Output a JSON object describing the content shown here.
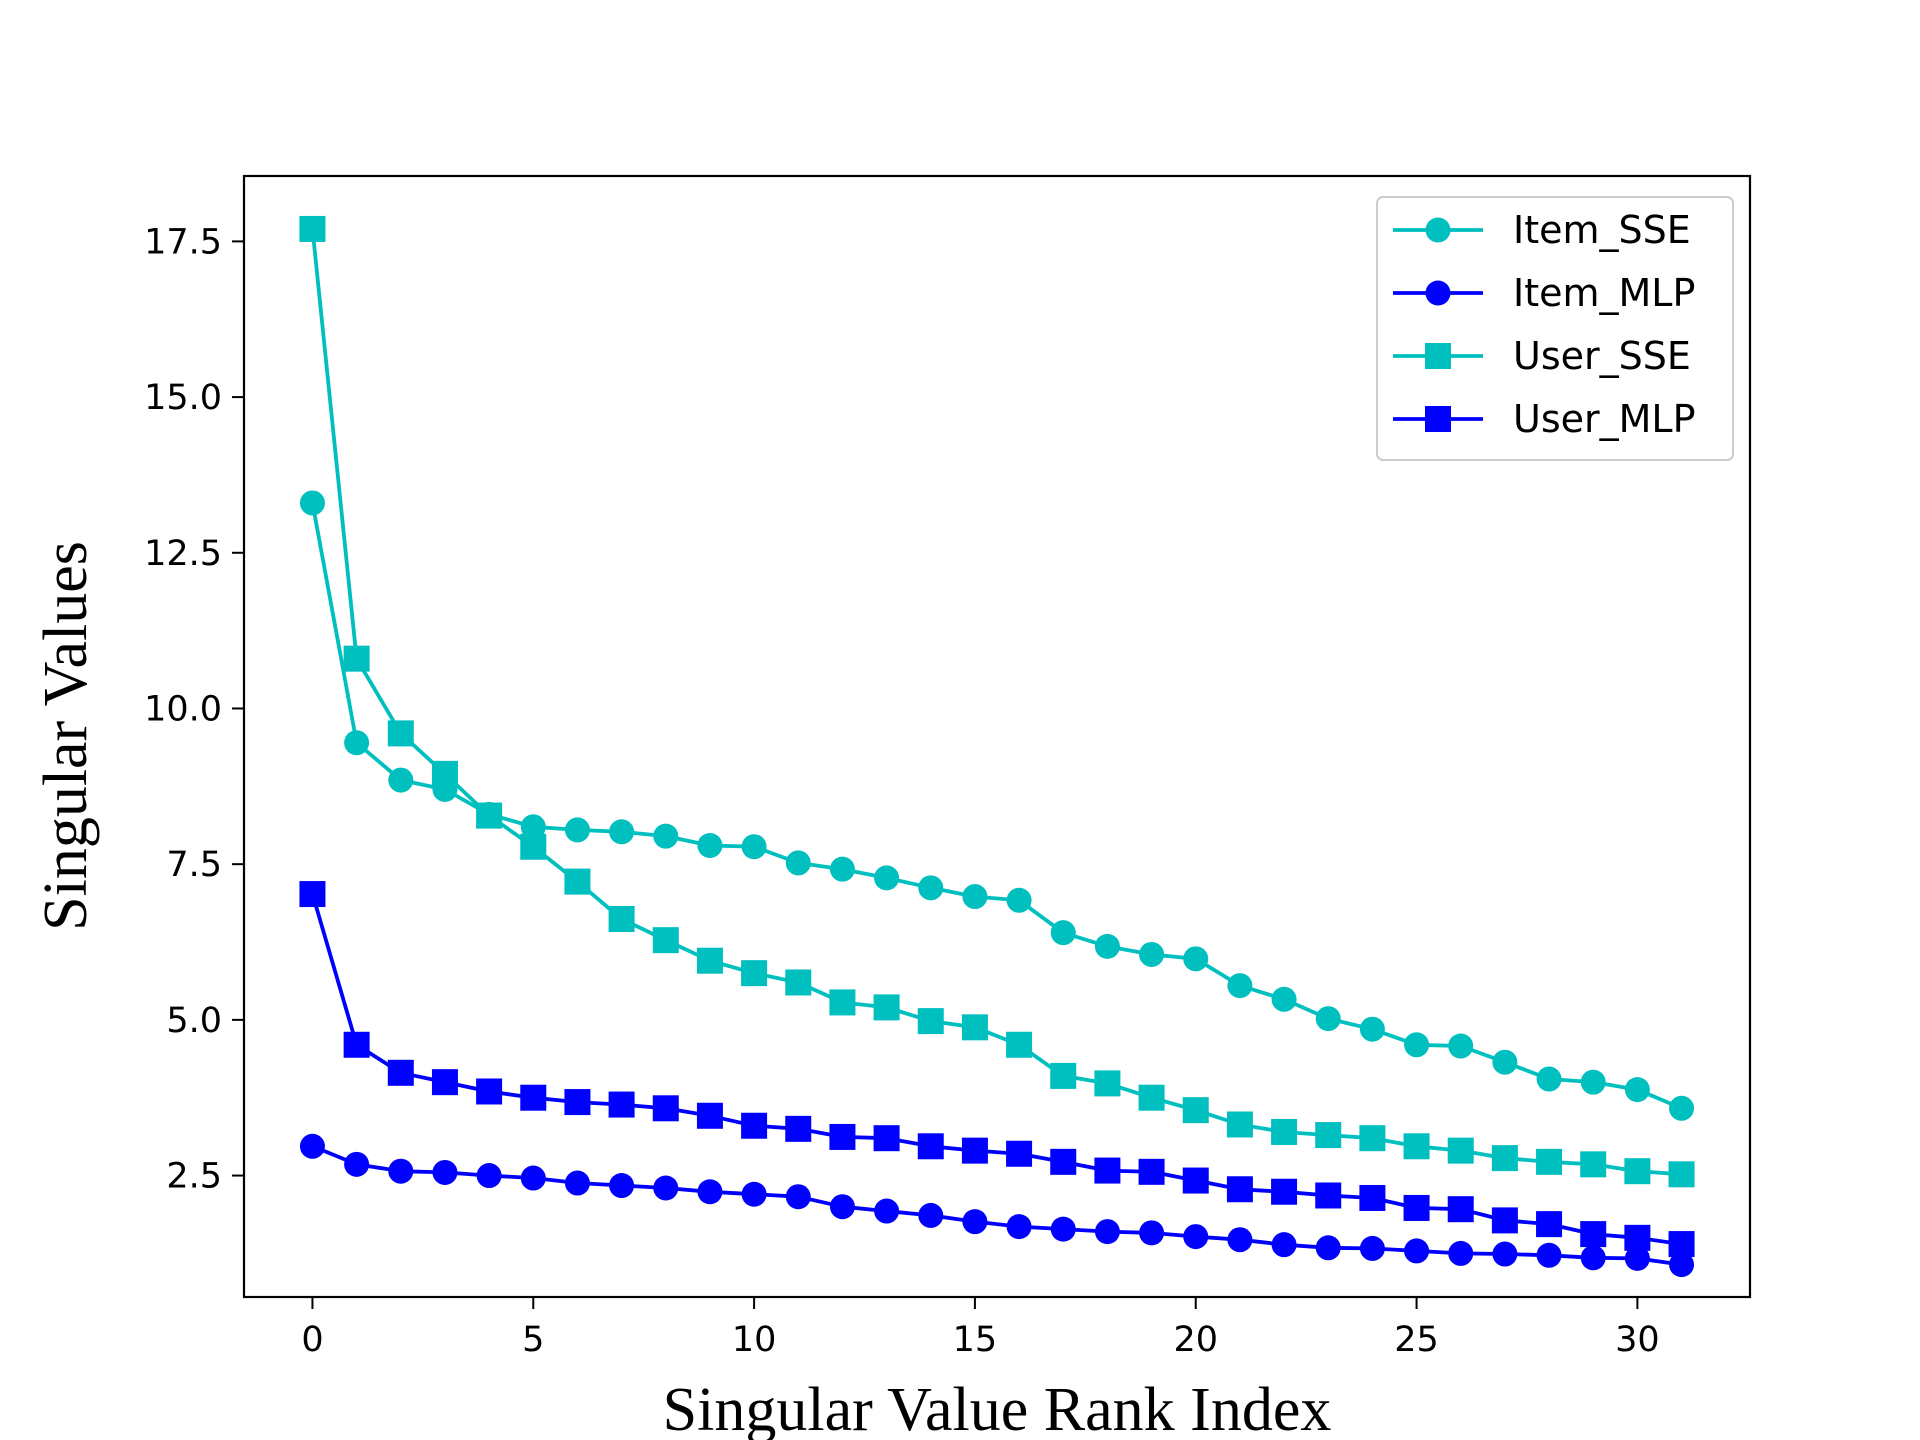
{
  "chart_data": {
    "type": "line",
    "title": "",
    "xlabel": "Singular Value Rank Index",
    "ylabel": "Singular Values",
    "xlim": [
      -1.55,
      32.55
    ],
    "ylim": [
      0.55,
      18.55
    ],
    "xticks": [
      "0",
      "5",
      "10",
      "15",
      "20",
      "25",
      "30"
    ],
    "yticks": [
      "2.5",
      "5.0",
      "7.5",
      "10.0",
      "12.5",
      "15.0",
      "17.5"
    ],
    "grid": false,
    "legend_position": "top-right",
    "x": [
      0,
      1,
      2,
      3,
      4,
      5,
      6,
      7,
      8,
      9,
      10,
      11,
      12,
      13,
      14,
      15,
      16,
      17,
      18,
      19,
      20,
      21,
      22,
      23,
      24,
      25,
      26,
      27,
      28,
      29,
      30,
      31
    ],
    "series": [
      {
        "name": "Item_SSE",
        "color": "#00bfbf",
        "marker": "circle",
        "values": [
          13.3,
          9.45,
          8.85,
          8.7,
          8.3,
          8.1,
          8.05,
          8.02,
          7.95,
          7.8,
          7.78,
          7.52,
          7.42,
          7.28,
          7.12,
          6.98,
          6.92,
          6.4,
          6.18,
          6.05,
          5.98,
          5.55,
          5.33,
          5.02,
          4.85,
          4.6,
          4.58,
          4.32,
          4.05,
          4.0,
          3.88,
          3.58
        ]
      },
      {
        "name": "Item_MLP",
        "color": "#0000ff",
        "marker": "circle",
        "values": [
          2.97,
          2.68,
          2.57,
          2.55,
          2.5,
          2.46,
          2.38,
          2.34,
          2.3,
          2.24,
          2.2,
          2.16,
          2.0,
          1.93,
          1.86,
          1.76,
          1.68,
          1.64,
          1.6,
          1.58,
          1.52,
          1.47,
          1.39,
          1.34,
          1.33,
          1.29,
          1.25,
          1.24,
          1.22,
          1.18,
          1.17,
          1.07
        ]
      },
      {
        "name": "User_SSE",
        "color": "#00bfbf",
        "marker": "square",
        "values": [
          17.7,
          10.8,
          9.6,
          8.95,
          8.28,
          7.78,
          7.22,
          6.62,
          6.28,
          5.95,
          5.75,
          5.6,
          5.28,
          5.2,
          4.98,
          4.88,
          4.6,
          4.1,
          3.98,
          3.75,
          3.55,
          3.32,
          3.2,
          3.15,
          3.1,
          2.97,
          2.9,
          2.78,
          2.72,
          2.68,
          2.57,
          2.52
        ]
      },
      {
        "name": "User_MLP",
        "color": "#0000ff",
        "marker": "square",
        "values": [
          7.02,
          4.6,
          4.15,
          4.0,
          3.85,
          3.75,
          3.68,
          3.64,
          3.58,
          3.46,
          3.3,
          3.25,
          3.12,
          3.1,
          2.97,
          2.9,
          2.85,
          2.72,
          2.58,
          2.56,
          2.42,
          2.28,
          2.24,
          2.18,
          2.14,
          1.98,
          1.96,
          1.78,
          1.72,
          1.56,
          1.5,
          1.4
        ]
      }
    ]
  }
}
